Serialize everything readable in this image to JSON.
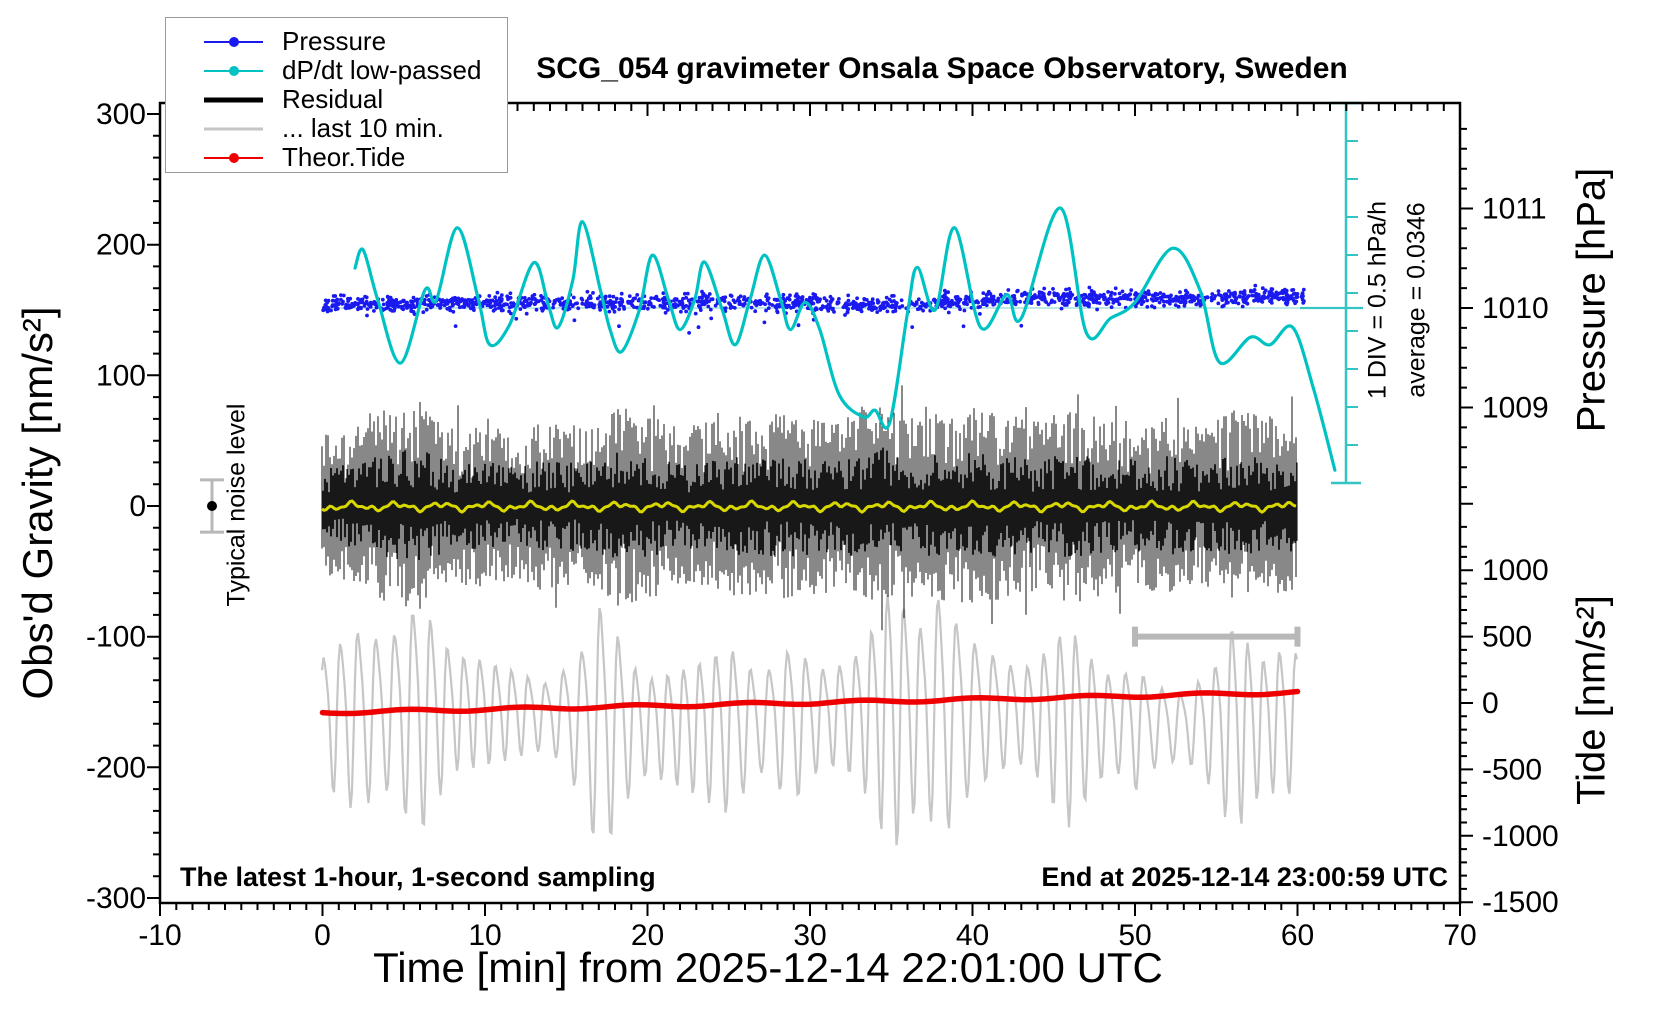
{
  "chart_data": {
    "type": "line",
    "title": "SCG_054 gravimeter Onsala Space Observatory, Sweden",
    "xlabel": "Time [min] from 2025-12-14 22:01:00 UTC",
    "ylabel_left": "Obs'd Gravity [nm/s²]",
    "ylabel_right_pressure": "Pressure [hPa]",
    "ylabel_right_tide": "Tide [nm/s²]",
    "grid": false,
    "legend_position": "top-left",
    "axes": {
      "x": {
        "range": [
          -10,
          70
        ],
        "ticks": [
          -10,
          0,
          10,
          20,
          30,
          40,
          50,
          60,
          70
        ],
        "minor_step_min": 1
      },
      "y_left": {
        "range": [
          -300,
          300
        ],
        "ticks": [
          300,
          200,
          100,
          0,
          -100,
          -200,
          -300
        ]
      },
      "y_right_pressure": {
        "ticks": [
          1011,
          1010,
          1009
        ],
        "minor_step_hpa": 0.2
      },
      "y_right_tide": {
        "ticks": [
          1000,
          500,
          0,
          -500,
          -1000,
          -1500
        ],
        "minor_step": 100
      }
    },
    "legend_order": [
      0,
      1,
      2,
      4,
      5
    ],
    "series": [
      {
        "name": "Pressure",
        "color": "#1a1af0",
        "style": "dots",
        "unit": "hPa",
        "marker": true,
        "sample_thickness": 2,
        "means": [
          [
            0,
            1010.03
          ],
          [
            5,
            1010.04
          ],
          [
            10,
            1010.05
          ],
          [
            15,
            1010.05
          ],
          [
            20,
            1010.06
          ],
          [
            25,
            1010.05
          ],
          [
            30,
            1010.06
          ],
          [
            33,
            1010.02
          ],
          [
            36,
            1010.04
          ],
          [
            40,
            1010.08
          ],
          [
            45,
            1010.1
          ],
          [
            50,
            1010.09
          ],
          [
            55,
            1010.1
          ],
          [
            60,
            1010.13
          ]
        ],
        "noise_sigma_hpa": 0.042,
        "n_dots": 1500,
        "n_outliers_below": 14
      },
      {
        "name": "dP/dt low-passed",
        "color": "#00c2c2",
        "style": "smooth-line",
        "unit": "hPa/h",
        "marker": true,
        "sample_thickness": 2,
        "points": [
          [
            2.0,
            0.56
          ],
          [
            2.5,
            0.8
          ],
          [
            3.4,
            0.14
          ],
          [
            4.8,
            -0.69
          ],
          [
            6.3,
            0.27
          ],
          [
            7.0,
            0.14
          ],
          [
            8.3,
            1.09
          ],
          [
            9.6,
            0.14
          ],
          [
            10.3,
            -0.45
          ],
          [
            11.5,
            -0.19
          ],
          [
            13.0,
            0.63
          ],
          [
            13.9,
            0.07
          ],
          [
            14.5,
            -0.22
          ],
          [
            15.4,
            0.4
          ],
          [
            16.0,
            1.17
          ],
          [
            17.1,
            0.27
          ],
          [
            17.7,
            -0.25
          ],
          [
            18.4,
            -0.54
          ],
          [
            19.5,
            0.01
          ],
          [
            20.3,
            0.73
          ],
          [
            21.3,
            0.14
          ],
          [
            22.0,
            -0.25
          ],
          [
            22.9,
            0.14
          ],
          [
            23.5,
            0.64
          ],
          [
            24.6,
            0.01
          ],
          [
            25.4,
            -0.45
          ],
          [
            26.3,
            0.14
          ],
          [
            27.2,
            0.73
          ],
          [
            28.2,
            0.14
          ],
          [
            28.8,
            -0.25
          ],
          [
            29.7,
            0.11
          ],
          [
            30.6,
            -0.25
          ],
          [
            31.8,
            -1.11
          ],
          [
            33.3,
            -1.4
          ],
          [
            34.0,
            -1.31
          ],
          [
            34.9,
            -1.48
          ],
          [
            36.0,
            -0.03
          ],
          [
            36.6,
            0.57
          ],
          [
            37.7,
            0.01
          ],
          [
            38.9,
            1.09
          ],
          [
            40.5,
            -0.22
          ],
          [
            42.1,
            0.21
          ],
          [
            43.0,
            -0.1
          ],
          [
            45.4,
            1.35
          ],
          [
            47.0,
            -0.29
          ],
          [
            48.5,
            -0.1
          ],
          [
            50.0,
            0.11
          ],
          [
            52.3,
            0.82
          ],
          [
            54.0,
            0.27
          ],
          [
            55.2,
            -0.68
          ],
          [
            57.1,
            -0.35
          ],
          [
            58.3,
            -0.45
          ],
          [
            59.7,
            -0.22
          ],
          [
            61.0,
            -1.04
          ],
          [
            62.3,
            -2.1
          ]
        ],
        "average_hpa_per_h": 0.0346,
        "div_value_hpa_per_h": 0.5,
        "scale_divisions": 10
      },
      {
        "name": "Residual",
        "color": "#000000",
        "style": "noise-band",
        "unit": "nm/s2",
        "marker": false,
        "sample_thickness": 5,
        "center": 0,
        "envelope": [
          [
            0,
            55
          ],
          [
            2,
            60
          ],
          [
            4,
            75
          ],
          [
            6,
            80
          ],
          [
            8,
            60
          ],
          [
            10,
            62
          ],
          [
            12,
            55
          ],
          [
            14,
            68
          ],
          [
            16,
            60
          ],
          [
            18,
            78
          ],
          [
            20,
            72
          ],
          [
            22,
            60
          ],
          [
            24,
            65
          ],
          [
            26,
            70
          ],
          [
            28,
            72
          ],
          [
            30,
            68
          ],
          [
            32,
            65
          ],
          [
            34,
            85
          ],
          [
            36,
            70
          ],
          [
            38,
            72
          ],
          [
            40,
            78
          ],
          [
            42,
            70
          ],
          [
            44,
            65
          ],
          [
            46,
            75
          ],
          [
            48,
            70
          ],
          [
            50,
            65
          ],
          [
            52,
            70
          ],
          [
            54,
            62
          ],
          [
            56,
            75
          ],
          [
            58,
            70
          ],
          [
            60,
            65
          ]
        ]
      },
      {
        "name": "Residual low-passed (yellow)",
        "color": "#d8d800",
        "style": "wiggle-line",
        "unit": "nm/s2",
        "marker": false,
        "sample_thickness": 3,
        "value": 0
      },
      {
        "name": "... last 10 min.",
        "color": "#c6c6c6",
        "style": "wave",
        "unit": "nm/s2 (tide scale)",
        "marker": false,
        "sample_thickness": 3,
        "center": -90,
        "period_min": 1.05,
        "amplitude": [
          [
            0,
            452
          ],
          [
            2,
            640
          ],
          [
            4,
            527
          ],
          [
            6,
            828
          ],
          [
            8,
            414
          ],
          [
            10,
            377
          ],
          [
            12,
            301
          ],
          [
            14,
            226
          ],
          [
            16,
            527
          ],
          [
            17,
            904
          ],
          [
            18,
            715
          ],
          [
            19,
            452
          ],
          [
            20,
            339
          ],
          [
            22,
            414
          ],
          [
            24,
            527
          ],
          [
            25,
            602
          ],
          [
            26,
            452
          ],
          [
            27,
            339
          ],
          [
            28,
            452
          ],
          [
            29,
            565
          ],
          [
            30,
            414
          ],
          [
            31,
            339
          ],
          [
            32,
            377
          ],
          [
            33,
            452
          ],
          [
            34,
            678
          ],
          [
            35,
            979
          ],
          [
            36,
            753
          ],
          [
            37,
            602
          ],
          [
            38,
            904
          ],
          [
            39,
            678
          ],
          [
            40,
            527
          ],
          [
            41,
            452
          ],
          [
            42,
            377
          ],
          [
            43,
            339
          ],
          [
            44,
            414
          ],
          [
            45,
            602
          ],
          [
            46,
            715
          ],
          [
            47,
            527
          ],
          [
            48,
            377
          ],
          [
            49,
            339
          ],
          [
            50,
            452
          ],
          [
            51,
            301
          ],
          [
            52,
            264
          ],
          [
            53,
            226
          ],
          [
            54,
            339
          ],
          [
            55,
            452
          ],
          [
            56,
            753
          ],
          [
            57,
            602
          ],
          [
            58,
            452
          ],
          [
            59,
            527
          ],
          [
            60,
            489
          ]
        ]
      },
      {
        "name": "Theor.Tide",
        "color": "#ee0000",
        "style": "thick-line",
        "unit": "nm/s2 (tide scale)",
        "marker": true,
        "sample_thickness": 2,
        "points": [
          [
            0,
            -72
          ],
          [
            15,
            -35
          ],
          [
            30,
            2
          ],
          [
            45,
            40
          ],
          [
            60,
            80
          ]
        ]
      }
    ],
    "annotations": {
      "div_scale": "1 DIV = 0.5 hPa/h",
      "average_label": "average = 0.0346",
      "noise_label": "Typical noise level",
      "sampling_note": "The latest 1-hour, 1-second sampling",
      "end_note": "End at 2025-12-14 23:00:59 UTC",
      "noise_marker": {
        "t_min": -6.8,
        "value_nms": 0,
        "error_nms": 20
      },
      "last10_bracket": {
        "from_min": 50,
        "to_min": 60,
        "level_nms": -100
      },
      "avg_line_pressure_hpa": 1010
    },
    "colors": {
      "frame": "#000000",
      "scalebar_cyan": "#35c4c4",
      "avg_faint_line": "#93d9d9",
      "marker_gray": "#b8b8b8"
    }
  }
}
